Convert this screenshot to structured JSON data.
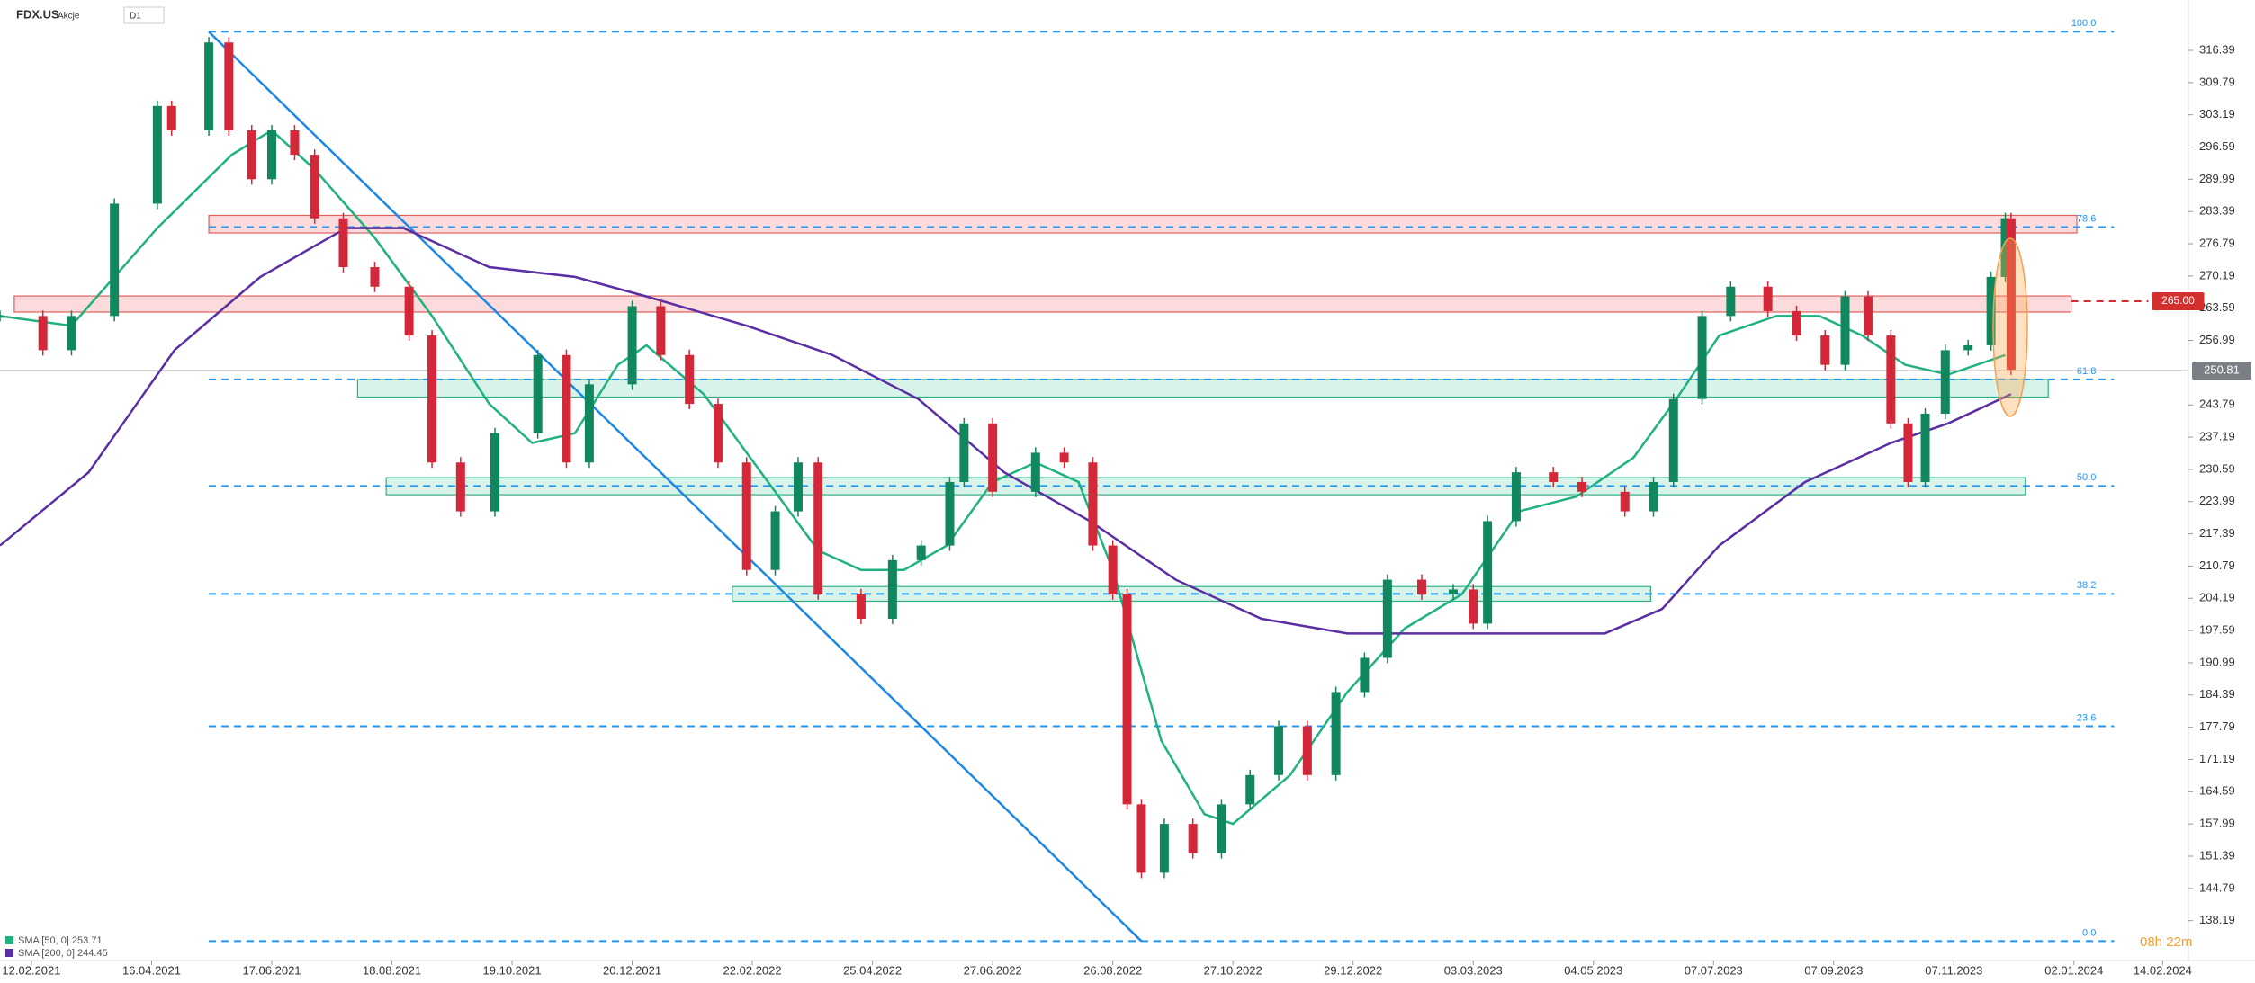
{
  "chart_data": {
    "type": "candlestick",
    "title": "FDX.US",
    "subtitle": "Akcje",
    "timeframe": "D1",
    "timer": "08h 22m",
    "up_color": "#11875d",
    "down_color": "#d2283a",
    "xlim": [
      -11,
      754
    ],
    "ylim": [
      131.5,
      326.7
    ],
    "xticks": [
      {
        "value": 0,
        "label": "12.02.2021"
      },
      {
        "value": 42,
        "label": "16.04.2021"
      },
      {
        "value": 84,
        "label": "17.06.2021"
      },
      {
        "value": 126,
        "label": "18.08.2021"
      },
      {
        "value": 168,
        "label": "19.10.2021"
      },
      {
        "value": 210,
        "label": "20.12.2021"
      },
      {
        "value": 252,
        "label": "22.02.2022"
      },
      {
        "value": 294,
        "label": "25.04.2022"
      },
      {
        "value": 336,
        "label": "27.06.2022"
      },
      {
        "value": 378,
        "label": "26.08.2022"
      },
      {
        "value": 420,
        "label": "27.10.2022"
      },
      {
        "value": 462,
        "label": "29.12.2022"
      },
      {
        "value": 504,
        "label": "03.03.2023"
      },
      {
        "value": 546,
        "label": "04.05.2023"
      },
      {
        "value": 588,
        "label": "07.07.2023"
      },
      {
        "value": 630,
        "label": "07.09.2023"
      },
      {
        "value": 672,
        "label": "07.11.2023"
      },
      {
        "value": 714,
        "label": "02.01.2024"
      },
      {
        "value": 745,
        "label": "14.02.2024"
      }
    ],
    "yticks": [
      316.39,
      309.79,
      303.19,
      296.59,
      289.99,
      283.39,
      276.79,
      270.19,
      263.59,
      256.99,
      243.79,
      237.19,
      230.59,
      223.99,
      217.39,
      210.79,
      204.19,
      197.59,
      190.99,
      184.39,
      177.79,
      171.19,
      164.59,
      157.99,
      151.39,
      144.79,
      138.19
    ],
    "x": [
      -11,
      4,
      14,
      29,
      44,
      49,
      62,
      69,
      77,
      84,
      92,
      99,
      109,
      120,
      132,
      140,
      150,
      162,
      177,
      187,
      195,
      210,
      220,
      230,
      240,
      250,
      260,
      268,
      275,
      290,
      301,
      311,
      321,
      326,
      336,
      351,
      361,
      371,
      378,
      383,
      388,
      396,
      406,
      416,
      426,
      436,
      446,
      456,
      466,
      474,
      486,
      497,
      504,
      509,
      519,
      532,
      542,
      557,
      567,
      574,
      584,
      594,
      607,
      617,
      627,
      634,
      642,
      650,
      656,
      662,
      669,
      677,
      685,
      690,
      692
    ],
    "values": [
      262,
      255,
      262,
      285,
      305,
      300,
      318,
      300,
      290,
      300,
      295,
      282,
      272,
      268,
      258,
      232,
      222,
      238,
      254,
      232,
      248,
      264,
      254,
      244,
      232,
      210,
      222,
      232,
      205,
      200,
      212,
      215,
      228,
      240,
      226,
      234,
      232,
      215,
      205,
      162,
      148,
      158,
      152,
      162,
      168,
      178,
      168,
      185,
      192,
      208,
      205,
      206,
      199,
      220,
      230,
      228,
      226,
      222,
      228,
      245,
      262,
      268,
      263,
      258,
      252,
      266,
      258,
      240,
      228,
      242,
      255,
      256,
      270,
      282,
      251
    ],
    "series": [
      {
        "name": "SMA [50, 0] 253.71",
        "color": "#1fb27f",
        "x": [
          -11,
          14,
          44,
          70,
          84,
          99,
          120,
          140,
          160,
          175,
          190,
          205,
          215,
          235,
          255,
          275,
          290,
          305,
          320,
          336,
          351,
          366,
          378,
          395,
          410,
          420,
          440,
          460,
          480,
          500,
          520,
          540,
          560,
          575,
          590,
          610,
          625,
          640,
          655,
          670,
          690
        ],
        "values": [
          262,
          260,
          280,
          295,
          300,
          292,
          278,
          262,
          244,
          236,
          238,
          252,
          256,
          246,
          230,
          214,
          210,
          210,
          215,
          228,
          232,
          228,
          210,
          175,
          160,
          158,
          168,
          185,
          198,
          205,
          222,
          225,
          233,
          245,
          258,
          262,
          262,
          258,
          252,
          250,
          254
        ]
      },
      {
        "name": "SMA [200, 0] 244.45",
        "color": "#5a2fa3",
        "x": [
          -11,
          20,
          50,
          80,
          110,
          130,
          160,
          190,
          215,
          250,
          280,
          310,
          340,
          370,
          400,
          430,
          460,
          490,
          520,
          550,
          570,
          590,
          620,
          650,
          670,
          692
        ],
        "values": [
          215,
          230,
          255,
          270,
          280,
          280,
          272,
          270,
          266,
          260,
          254,
          245,
          230,
          220,
          208,
          200,
          197,
          197,
          197,
          197,
          202,
          215,
          228,
          236,
          240,
          246
        ]
      }
    ],
    "fib_levels": [
      {
        "label": "100.0",
        "price": 320.2
      },
      {
        "label": "78.6",
        "price": 280.2
      },
      {
        "label": "61.8",
        "price": 249.0
      },
      {
        "label": "50.0",
        "price": 227.2
      },
      {
        "label": "38.2",
        "price": 205.1
      },
      {
        "label": "23.6",
        "price": 178.0
      },
      {
        "label": "0.0",
        "price": 134.0
      }
    ],
    "fib_x": [
      62,
      728
    ],
    "zones": [
      {
        "kind": "resistance",
        "x": [
          62,
          715
        ],
        "price": [
          279.0,
          282.6
        ]
      },
      {
        "kind": "resistance",
        "x": [
          -6,
          713
        ],
        "price": [
          262.8,
          266.1
        ]
      },
      {
        "kind": "support",
        "x": [
          114,
          705
        ],
        "price": [
          245.4,
          249.0
        ]
      },
      {
        "kind": "support",
        "x": [
          124,
          697
        ],
        "price": [
          225.4,
          228.9
        ]
      },
      {
        "kind": "support",
        "x": [
          245,
          566
        ],
        "price": [
          203.6,
          206.6
        ]
      }
    ],
    "trend_line": {
      "x": [
        62,
        388
      ],
      "values": [
        320.2,
        134.0
      ]
    },
    "level_line": {
      "value": 265,
      "label": "265.00",
      "x": [
        713,
        740
      ]
    },
    "current_price": 250.81
  }
}
